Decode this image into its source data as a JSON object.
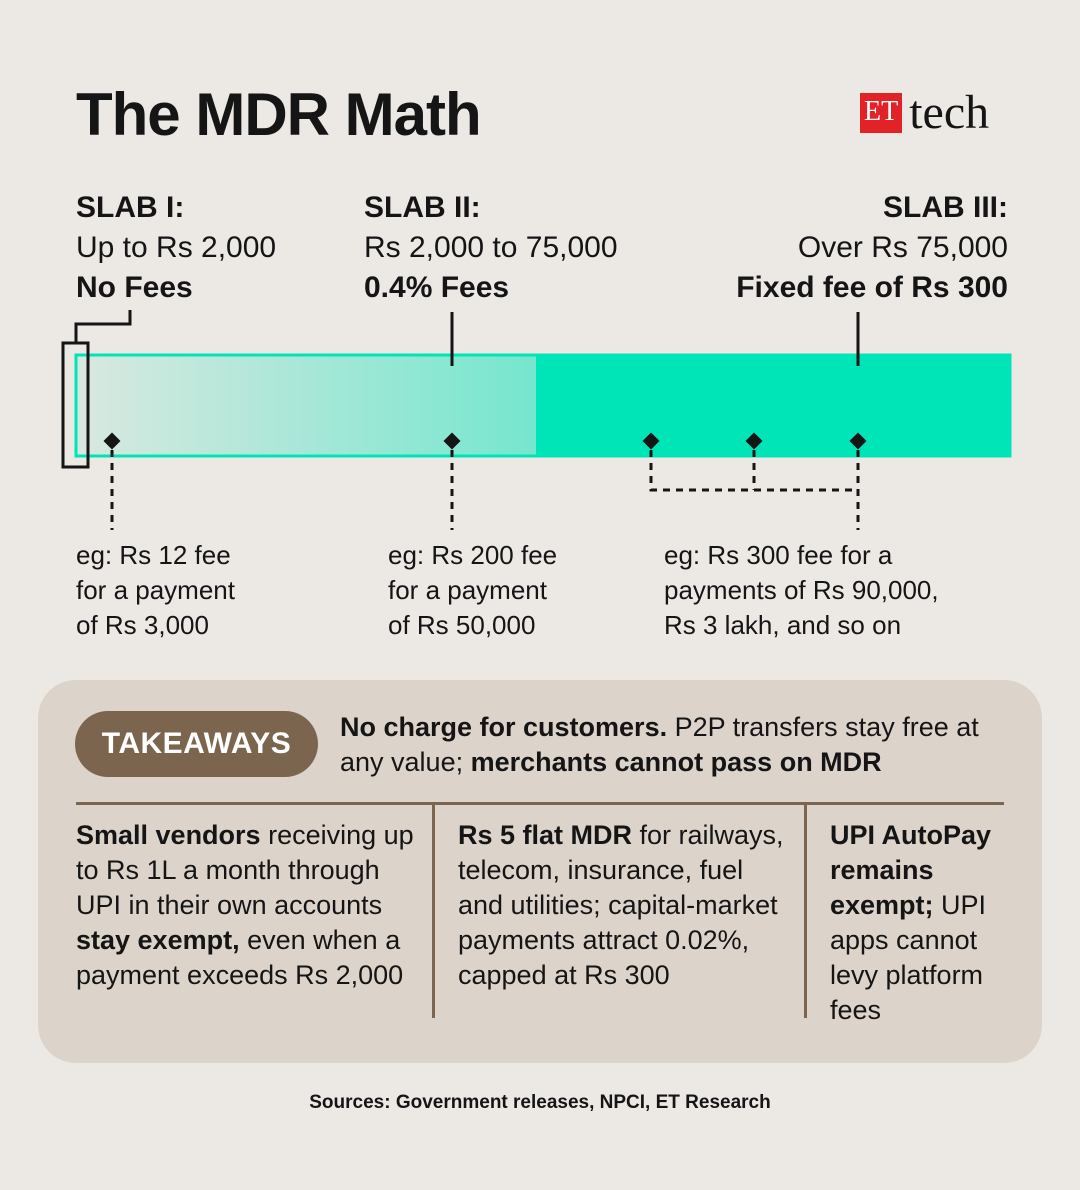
{
  "header": {
    "title": "The MDR Math",
    "logo_et": "ET",
    "logo_tech": "tech"
  },
  "slabs": [
    {
      "heading": "SLAB I:",
      "range": "Up to Rs 2,000",
      "fee": "No Fees"
    },
    {
      "heading": "SLAB II:",
      "range": "Rs 2,000 to 75,000",
      "fee": "0.4% Fees"
    },
    {
      "heading": "SLAB III:",
      "range": "Over Rs 75,000",
      "fee": "Fixed fee of Rs 300"
    }
  ],
  "examples": [
    {
      "lines": [
        "eg: Rs 12 fee",
        "for a payment",
        "of Rs 3,000"
      ]
    },
    {
      "lines": [
        "eg: Rs 200 fee",
        "for a payment",
        "of Rs 50,000"
      ]
    },
    {
      "lines": [
        "eg: Rs 300 fee for a",
        "payments of Rs 90,000,",
        "Rs 3 lakh, and so on"
      ]
    }
  ],
  "takeaways": {
    "label": "TAKEAWAYS",
    "main": {
      "bold1": "No charge for customers.",
      "text1": " P2P transfers stay free at any value; ",
      "bold2": "merchants cannot pass on MDR"
    },
    "col1": {
      "bold1": "Small vendors",
      "text1": " receiving up to Rs 1L a month through UPI in their own accounts ",
      "bold2": "stay exempt,",
      "text2": " even when a payment exceeds Rs 2,000"
    },
    "col2": {
      "bold1": "Rs 5 flat MDR",
      "text1": " for railways, telecom, insurance, fuel and utilities; capital-market payments attract 0.02%, capped at Rs 300"
    },
    "col3": {
      "bold1": "UPI AutoPay remains exempt;",
      "text1": " UPI apps cannot levy platform fees"
    }
  },
  "source": "Sources: Government releases, NPCI, ET Research",
  "colors": {
    "background": "#ece8e4",
    "bar": "#00e5b8",
    "panel": "#dcd3cb",
    "pill": "#7b654f",
    "logo_red": "#e32228"
  }
}
